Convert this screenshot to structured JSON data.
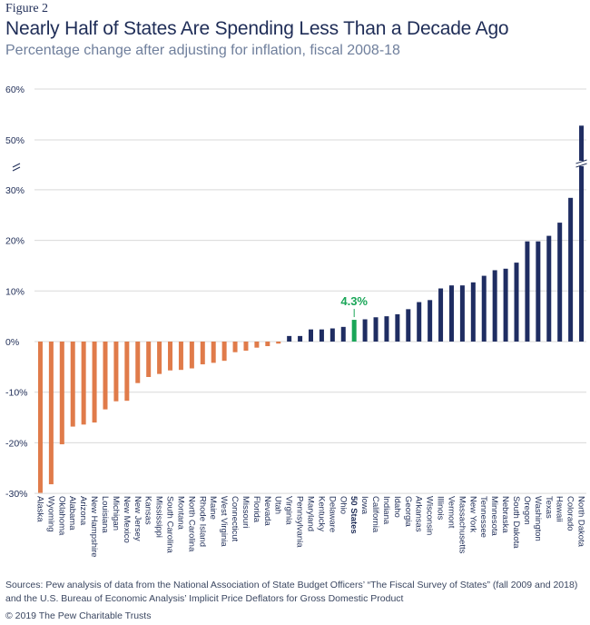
{
  "figure_label": "Figure 2",
  "title": "Nearly Half of States Are Spending Less Than a Decade Ago",
  "subtitle": "Percentage change after adjusting for inflation, fiscal 2008-18",
  "sources": "Sources: Pew analysis of data from the National Association of State Budget Officers’ “The Fiscal Survey of States” (fall 2009 and 2018) and the U.S. Bureau of Economic Analysis’ Implicit Price Deflators for Gross Domestic Product",
  "copyright": "© 2019 The Pew Charitable Trusts",
  "colors": {
    "negative": "#e07b4a",
    "positive": "#1f2d62",
    "average": "#1aa658",
    "grid": "#d9d9d9"
  },
  "chart_data": {
    "type": "bar",
    "ylim": [
      -30,
      60
    ],
    "axis_break": true,
    "y_ticks": [
      "60%",
      "50%",
      "30%",
      "20%",
      "10%",
      "0%",
      "-10%",
      "-20%",
      "-30%"
    ],
    "categories": [
      "Alaska",
      "Wyoming",
      "Oklahoma",
      "Alabama",
      "Arizona",
      "New Hampshire",
      "Louisiana",
      "Michigan",
      "New Mexico",
      "New Jersey",
      "Kansas",
      "Mississippi",
      "South Carolina",
      "Montana",
      "North Carolina",
      "Rhode Island",
      "Maine",
      "West Virginia",
      "Connecticut",
      "Missouri",
      "Florida",
      "Nevada",
      "Utah",
      "Virginia",
      "Pennsylvania",
      "Maryland",
      "Kentucky",
      "Delaware",
      "Ohio",
      "50 States",
      "Iowa",
      "California",
      "Indiana",
      "Idaho",
      "Georgia",
      "Arkansas",
      "Wisconsin",
      "Illinois",
      "Vermont",
      "Massachusetts",
      "New York",
      "Tennessee",
      "Minnesota",
      "Nebraska",
      "South Dakota",
      "Oregon",
      "Washington",
      "Texas",
      "Hawaii",
      "Colorado",
      "North Dakota"
    ],
    "values": [
      -29.9,
      -28.2,
      -20.3,
      -16.8,
      -16.4,
      -16.0,
      -13.4,
      -11.8,
      -11.7,
      -8.2,
      -7.0,
      -6.4,
      -5.7,
      -5.6,
      -5.3,
      -4.5,
      -4.2,
      -3.8,
      -2.1,
      -1.8,
      -1.2,
      -0.9,
      -0.4,
      1.1,
      1.1,
      2.4,
      2.4,
      2.6,
      2.9,
      4.3,
      4.4,
      4.8,
      5.0,
      5.4,
      6.4,
      7.8,
      8.2,
      10.5,
      11.1,
      11.1,
      11.7,
      13.0,
      14.1,
      14.4,
      15.6,
      19.8,
      19.8,
      20.9,
      23.5,
      28.4,
      52.8
    ],
    "highlight": {
      "category": "50 States",
      "label": "4.3%"
    }
  }
}
